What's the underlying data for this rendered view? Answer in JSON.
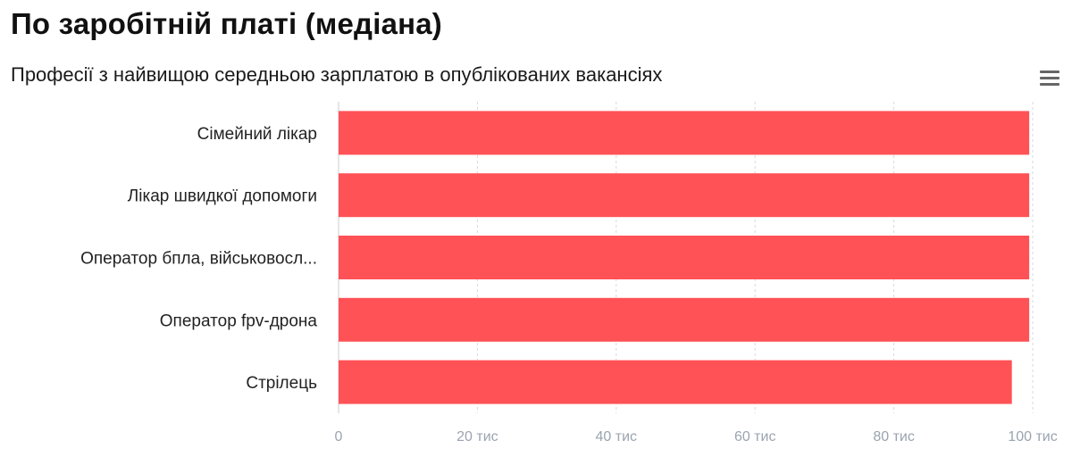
{
  "title": "По заробітній платі (медіана)",
  "subtitle": "Професії з найвищою середньою зарплатою в опублікованих вакансіях",
  "menu_icon": "hamburger-menu-icon",
  "chart_data": {
    "type": "bar",
    "orientation": "horizontal",
    "title": "По заробітній платі (медіана)",
    "subtitle": "Професії з найвищою середньою зарплатою в опублікованих вакансіях",
    "categories": [
      "Сімейний лікар",
      "Лікар швидкої допомоги",
      "Оператор бпла, військовосл...",
      "Оператор fpv-дрона",
      "Стрілець"
    ],
    "values": [
      99500,
      99500,
      99500,
      99500,
      97000
    ],
    "xlabel": "",
    "ylabel": "",
    "xlim": [
      0,
      100000
    ],
    "x_ticks": [
      0,
      20000,
      40000,
      60000,
      80000,
      100000
    ],
    "x_tick_labels": [
      "0",
      "20 тис",
      "40 тис",
      "60 тис",
      "80 тис",
      "100 тис"
    ],
    "grid": true,
    "legend": "none",
    "bar_color": "#ff5256"
  }
}
